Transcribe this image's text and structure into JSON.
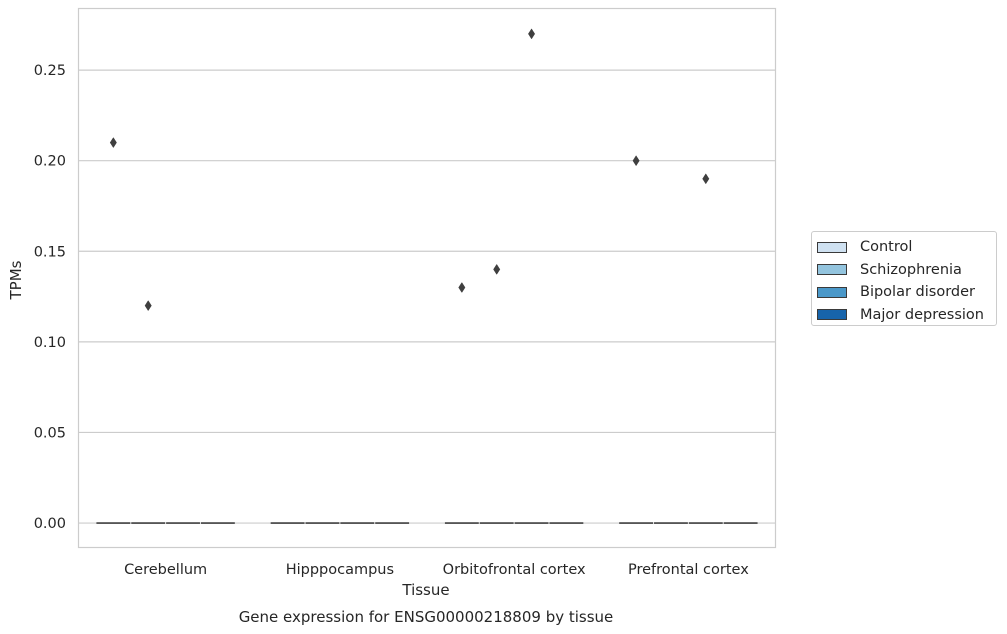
{
  "chart_data": {
    "type": "box",
    "title": "Gene expression for ENSG00000218809 by tissue",
    "xlabel": "Tissue",
    "ylabel": "TPMs",
    "categories": [
      "Cerebellum",
      "Hipppocampus",
      "Orbitofrontal cortex",
      "Prefrontal cortex"
    ],
    "ylim": [
      -0.0135,
      0.284
    ],
    "yticks": [
      0.0,
      0.05,
      0.1,
      0.15,
      0.2,
      0.25
    ],
    "ytick_labels": [
      "0.00",
      "0.05",
      "0.10",
      "0.15",
      "0.20",
      "0.25"
    ],
    "grid": true,
    "legend_position": "right-outside",
    "series": [
      {
        "name": "Control",
        "color": "#cfe1f1",
        "medians": [
          0,
          0,
          0,
          0
        ],
        "outliers": [
          [
            0.21
          ],
          [],
          [
            0.13
          ],
          [
            0.2
          ]
        ]
      },
      {
        "name": "Schizophrenia",
        "color": "#93c4de",
        "medians": [
          0,
          0,
          0,
          0
        ],
        "outliers": [
          [
            0.12
          ],
          [],
          [
            0.14
          ],
          []
        ]
      },
      {
        "name": "Bipolar disorder",
        "color": "#4a98c9",
        "medians": [
          0,
          0,
          0,
          0
        ],
        "outliers": [
          [],
          [],
          [
            0.27
          ],
          [
            0.19
          ]
        ]
      },
      {
        "name": "Major depression",
        "color": "#1764ab",
        "medians": [
          0,
          0,
          0,
          0
        ],
        "outliers": [
          [],
          [],
          [],
          []
        ]
      }
    ]
  }
}
